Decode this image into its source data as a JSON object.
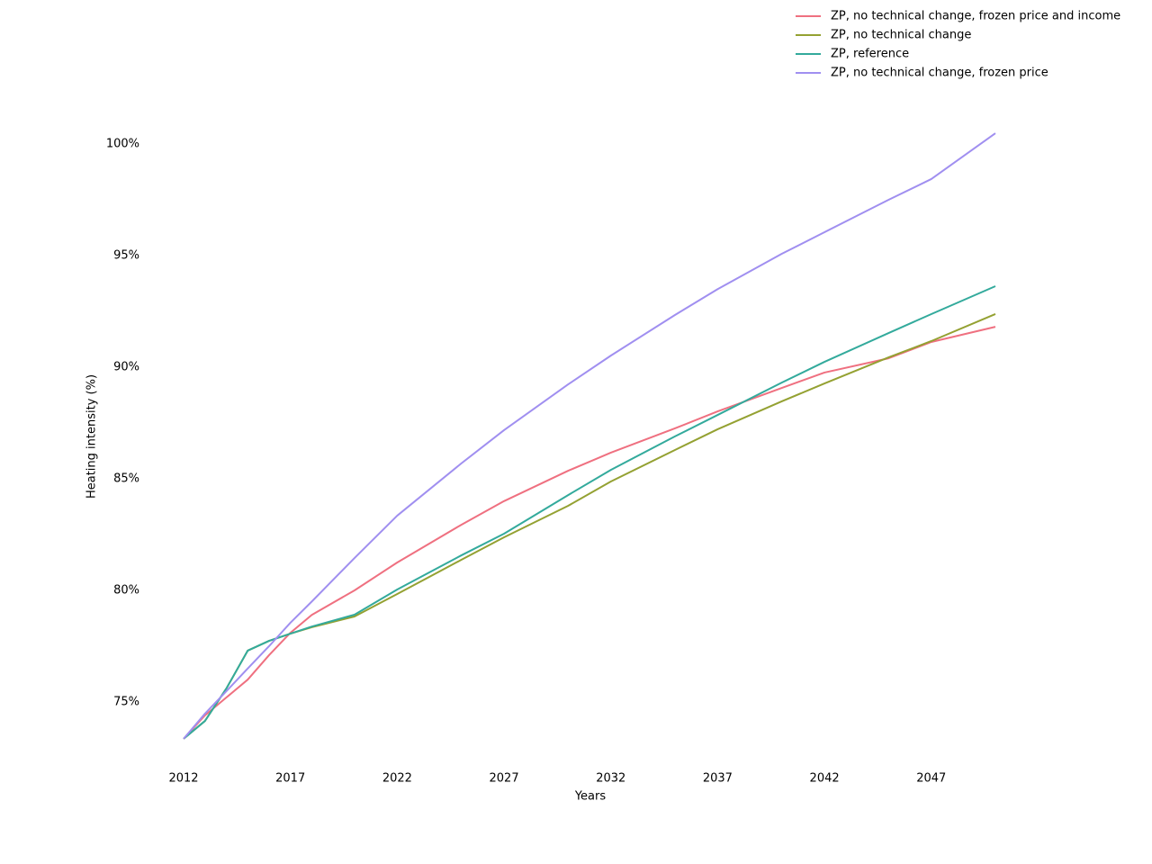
{
  "chart_data": {
    "type": "line",
    "x_label": "Years",
    "y_label": "Heating intensity (%)",
    "x": [
      2012,
      2013,
      2014,
      2015,
      2016,
      2017,
      2018,
      2020,
      2022,
      2025,
      2027,
      2030,
      2032,
      2035,
      2037,
      2040,
      2042,
      2045,
      2047,
      2050
    ],
    "series": [
      {
        "name": "ZP, no technical change, frozen price and income",
        "color": "#ef7080",
        "values": [
          73.35,
          74.4,
          75.2,
          76.0,
          77.1,
          78.1,
          78.9,
          80.0,
          81.25,
          82.94,
          84.0,
          85.36,
          86.17,
          87.26,
          88.02,
          89.07,
          89.76,
          90.4,
          91.13,
          91.81
        ]
      },
      {
        "name": "ZP, no technical change",
        "color": "#94a132",
        "values": [
          73.35,
          74.15,
          75.6,
          77.3,
          77.74,
          78.06,
          78.35,
          78.83,
          79.84,
          81.37,
          82.38,
          83.79,
          84.88,
          86.29,
          87.22,
          88.47,
          89.27,
          90.44,
          91.17,
          92.38
        ]
      },
      {
        "name": "ZP, reference",
        "color": "#33aa9c",
        "values": [
          73.35,
          74.15,
          75.6,
          77.3,
          77.74,
          78.06,
          78.38,
          78.91,
          80.04,
          81.57,
          82.54,
          84.27,
          85.4,
          86.9,
          87.86,
          89.31,
          90.24,
          91.53,
          92.38,
          93.63
        ]
      },
      {
        "name": "ZP, no technical change, frozen price",
        "color": "#a08ff0",
        "values": [
          73.35,
          74.48,
          75.48,
          76.5,
          77.5,
          78.55,
          79.5,
          81.45,
          83.35,
          85.69,
          87.18,
          89.23,
          90.52,
          92.34,
          93.5,
          95.08,
          96.05,
          97.5,
          98.43,
          100.48
        ]
      }
    ],
    "xlim": [
      2012,
      2050
    ],
    "ylim": [
      72.6,
      100.9
    ],
    "xticks": [
      2012,
      2017,
      2022,
      2027,
      2032,
      2037,
      2042,
      2047
    ],
    "yticks": [
      {
        "value": 75,
        "label": "75%"
      },
      {
        "value": 80,
        "label": "80%"
      },
      {
        "value": 85,
        "label": "85%"
      },
      {
        "value": 90,
        "label": "90%"
      },
      {
        "value": 95,
        "label": "95%"
      },
      {
        "value": 100,
        "label": "100%"
      }
    ],
    "legend": "upper right"
  }
}
